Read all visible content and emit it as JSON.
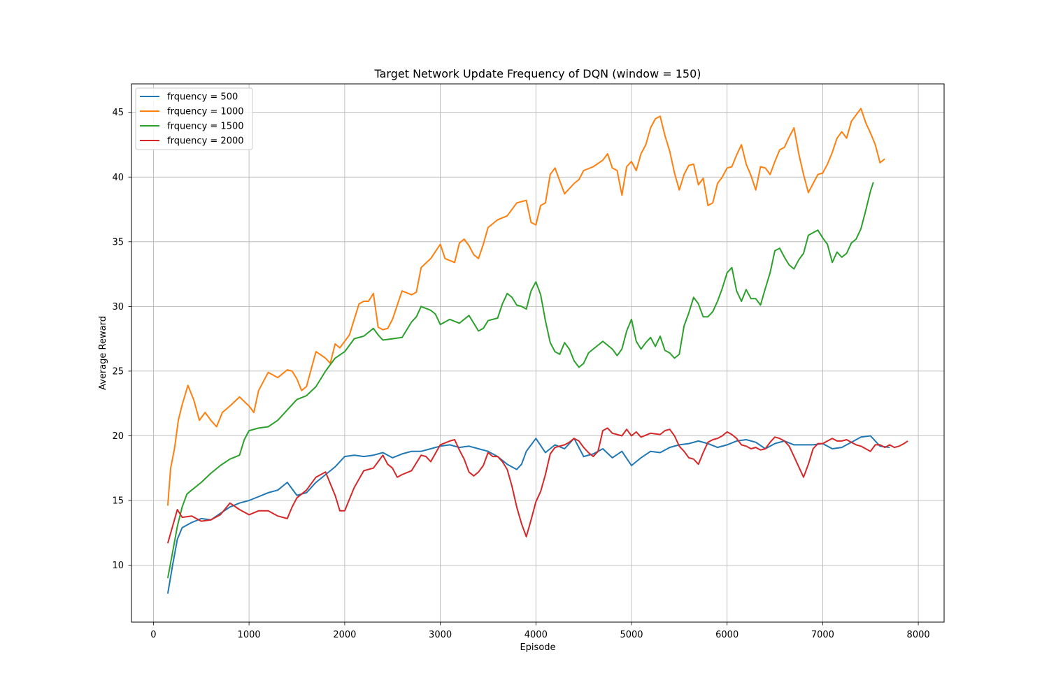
{
  "chart_data": {
    "type": "line",
    "title": "Target Network Update Frequency of DQN (window = 150)",
    "xlabel": "Episode",
    "ylabel": "Average Reward",
    "xlim": [
      -230,
      8270
    ],
    "ylim": [
      5.6,
      47.2
    ],
    "xticks": [
      0,
      1000,
      2000,
      3000,
      4000,
      5000,
      6000,
      7000,
      8000
    ],
    "yticks": [
      10,
      15,
      20,
      25,
      30,
      35,
      40,
      45
    ],
    "grid": true,
    "legend_position": "upper-left",
    "series": [
      {
        "name": "frquency = 500",
        "color": "#1f77b4",
        "x": [
          150,
          200,
          250,
          300,
          400,
          500,
          600,
          700,
          800,
          900,
          1000,
          1100,
          1200,
          1300,
          1400,
          1500,
          1600,
          1700,
          1800,
          1900,
          2000,
          2100,
          2200,
          2300,
          2400,
          2500,
          2600,
          2700,
          2800,
          2900,
          3000,
          3100,
          3200,
          3300,
          3400,
          3500,
          3600,
          3700,
          3800,
          3850,
          3900,
          4000,
          4100,
          4200,
          4300,
          4400,
          4500,
          4600,
          4700,
          4800,
          4900,
          5000,
          5100,
          5200,
          5300,
          5400,
          5500,
          5600,
          5700,
          5800,
          5900,
          6000,
          6100,
          6200,
          6300,
          6400,
          6500,
          6600,
          6700,
          6800,
          6900,
          7000,
          7100,
          7200,
          7300,
          7400,
          7500,
          7600,
          7700
        ],
        "y": [
          7.8,
          10.0,
          12.0,
          12.9,
          13.3,
          13.6,
          13.5,
          14.0,
          14.5,
          14.8,
          15.0,
          15.3,
          15.6,
          15.8,
          16.4,
          15.4,
          15.6,
          16.4,
          17.0,
          17.6,
          18.4,
          18.5,
          18.4,
          18.5,
          18.7,
          18.3,
          18.6,
          18.8,
          18.8,
          19.0,
          19.2,
          19.3,
          19.1,
          19.2,
          19.0,
          18.8,
          18.4,
          17.8,
          17.4,
          17.8,
          18.8,
          19.8,
          18.7,
          19.3,
          19.0,
          19.8,
          18.4,
          18.6,
          19.0,
          18.3,
          18.8,
          17.7,
          18.3,
          18.8,
          18.7,
          19.1,
          19.3,
          19.4,
          19.6,
          19.4,
          19.1,
          19.3,
          19.6,
          19.7,
          19.5,
          19.0,
          19.4,
          19.6,
          19.3,
          19.3,
          19.3,
          19.4,
          19.0,
          19.1,
          19.5,
          19.9,
          20.0,
          19.2,
          19.1
        ]
      },
      {
        "name": "frquency = 1000",
        "color": "#ff7f0e",
        "x": [
          150,
          180,
          220,
          260,
          300,
          360,
          420,
          480,
          540,
          600,
          660,
          720,
          800,
          900,
          1000,
          1050,
          1100,
          1200,
          1300,
          1400,
          1450,
          1500,
          1550,
          1600,
          1700,
          1800,
          1850,
          1900,
          1950,
          2000,
          2050,
          2100,
          2150,
          2200,
          2250,
          2300,
          2350,
          2400,
          2450,
          2500,
          2600,
          2700,
          2750,
          2800,
          2900,
          3000,
          3050,
          3150,
          3200,
          3250,
          3300,
          3350,
          3400,
          3450,
          3500,
          3600,
          3700,
          3800,
          3900,
          3950,
          4000,
          4050,
          4100,
          4150,
          4200,
          4300,
          4400,
          4450,
          4500,
          4600,
          4700,
          4750,
          4800,
          4850,
          4900,
          4950,
          5000,
          5050,
          5100,
          5150,
          5200,
          5250,
          5300,
          5350,
          5400,
          5450,
          5500,
          5550,
          5600,
          5650,
          5700,
          5750,
          5800,
          5850,
          5900,
          5950,
          6000,
          6050,
          6100,
          6150,
          6200,
          6250,
          6300,
          6350,
          6400,
          6450,
          6500,
          6550,
          6600,
          6650,
          6700,
          6750,
          6800,
          6850,
          6900,
          6950,
          7000,
          7050,
          7100,
          7150,
          7200,
          7250,
          7300,
          7350,
          7400,
          7450,
          7500,
          7550,
          7600,
          7650
        ],
        "y": [
          14.6,
          17.5,
          19.0,
          21.2,
          22.4,
          23.9,
          22.8,
          21.2,
          21.8,
          21.2,
          20.7,
          21.8,
          22.3,
          23.0,
          22.3,
          21.8,
          23.5,
          24.9,
          24.5,
          25.1,
          25.0,
          24.4,
          23.5,
          23.8,
          26.5,
          26.0,
          25.6,
          27.1,
          26.8,
          27.3,
          27.8,
          29.0,
          30.2,
          30.4,
          30.4,
          31.0,
          28.4,
          28.2,
          28.3,
          29.0,
          31.2,
          30.9,
          31.1,
          33.0,
          33.7,
          34.8,
          33.7,
          33.4,
          34.9,
          35.2,
          34.7,
          34.0,
          33.7,
          34.8,
          36.1,
          36.7,
          37.0,
          38.0,
          38.2,
          36.5,
          36.3,
          37.8,
          38.0,
          40.2,
          40.7,
          38.7,
          39.5,
          39.8,
          40.5,
          40.8,
          41.3,
          41.8,
          40.7,
          40.5,
          38.6,
          40.8,
          41.2,
          40.5,
          41.8,
          42.5,
          43.8,
          44.5,
          44.7,
          43.2,
          42.0,
          40.3,
          39.0,
          40.2,
          40.9,
          41.0,
          39.4,
          39.9,
          37.8,
          38.0,
          39.5,
          40.0,
          40.7,
          40.8,
          41.7,
          42.5,
          41.0,
          40.1,
          39.0,
          40.8,
          40.7,
          40.2,
          41.2,
          42.1,
          42.3,
          43.1,
          43.8,
          41.8,
          40.2,
          38.8,
          39.5,
          40.2,
          40.3,
          41.0,
          41.9,
          43.0,
          43.5,
          43.0,
          44.3,
          44.8,
          45.3,
          44.2,
          43.4,
          42.5,
          41.1,
          41.4
        ]
      },
      {
        "name": "frquency = 1500",
        "color": "#2ca02c",
        "x": [
          150,
          200,
          250,
          300,
          350,
          400,
          500,
          600,
          700,
          800,
          900,
          950,
          1000,
          1100,
          1200,
          1300,
          1400,
          1500,
          1600,
          1700,
          1800,
          1900,
          2000,
          2100,
          2200,
          2300,
          2350,
          2400,
          2500,
          2600,
          2700,
          2750,
          2800,
          2900,
          2950,
          3000,
          3100,
          3200,
          3300,
          3400,
          3450,
          3500,
          3600,
          3650,
          3700,
          3750,
          3800,
          3850,
          3900,
          3950,
          4000,
          4050,
          4100,
          4150,
          4200,
          4250,
          4300,
          4350,
          4400,
          4450,
          4500,
          4550,
          4600,
          4650,
          4700,
          4750,
          4800,
          4850,
          4900,
          4950,
          5000,
          5050,
          5100,
          5150,
          5200,
          5250,
          5300,
          5350,
          5400,
          5450,
          5500,
          5550,
          5600,
          5650,
          5700,
          5750,
          5800,
          5850,
          5900,
          5950,
          6000,
          6050,
          6100,
          6150,
          6200,
          6250,
          6300,
          6350,
          6400,
          6450,
          6500,
          6550,
          6600,
          6650,
          6700,
          6750,
          6800,
          6850,
          6900,
          6950,
          7000,
          7050,
          7100,
          7150,
          7200,
          7250,
          7300,
          7350,
          7400,
          7450,
          7500,
          7530
        ],
        "y": [
          9.0,
          11.0,
          13.0,
          14.5,
          15.5,
          15.8,
          16.4,
          17.1,
          17.7,
          18.2,
          18.5,
          19.7,
          20.4,
          20.6,
          20.7,
          21.2,
          22.0,
          22.8,
          23.1,
          23.8,
          25.0,
          26.0,
          26.5,
          27.5,
          27.7,
          28.3,
          27.8,
          27.4,
          27.5,
          27.6,
          28.8,
          29.2,
          30.0,
          29.7,
          29.4,
          28.6,
          29.0,
          28.7,
          29.3,
          28.1,
          28.3,
          28.9,
          29.1,
          30.2,
          31.0,
          30.7,
          30.1,
          30.0,
          29.8,
          31.2,
          31.9,
          30.9,
          28.9,
          27.2,
          26.5,
          26.3,
          27.2,
          26.7,
          25.8,
          25.3,
          25.6,
          26.4,
          26.7,
          27.0,
          27.3,
          27.0,
          26.7,
          26.2,
          26.7,
          28.1,
          29.0,
          27.3,
          26.7,
          27.2,
          27.6,
          26.9,
          27.7,
          26.6,
          26.4,
          26.0,
          26.3,
          28.5,
          29.5,
          30.7,
          30.2,
          29.2,
          29.2,
          29.6,
          30.4,
          31.4,
          32.6,
          33.0,
          31.2,
          30.4,
          31.3,
          30.6,
          30.6,
          30.1,
          31.4,
          32.6,
          34.3,
          34.5,
          33.8,
          33.2,
          32.9,
          33.6,
          34.1,
          35.5,
          35.7,
          35.9,
          35.3,
          34.8,
          33.4,
          34.2,
          33.8,
          34.1,
          34.9,
          35.2,
          36.0,
          37.4,
          38.9,
          39.6
        ]
      },
      {
        "name": "frquency = 2000",
        "color": "#d62728",
        "x": [
          150,
          200,
          250,
          300,
          400,
          500,
          600,
          700,
          800,
          900,
          1000,
          1100,
          1200,
          1300,
          1400,
          1450,
          1500,
          1600,
          1700,
          1800,
          1900,
          1950,
          2000,
          2100,
          2200,
          2300,
          2350,
          2400,
          2450,
          2500,
          2550,
          2600,
          2700,
          2800,
          2850,
          2900,
          3000,
          3100,
          3150,
          3200,
          3250,
          3300,
          3350,
          3400,
          3450,
          3500,
          3550,
          3600,
          3650,
          3700,
          3750,
          3800,
          3850,
          3900,
          3950,
          4000,
          4050,
          4100,
          4150,
          4200,
          4300,
          4350,
          4400,
          4450,
          4500,
          4550,
          4600,
          4650,
          4700,
          4750,
          4800,
          4850,
          4900,
          4950,
          5000,
          5050,
          5100,
          5200,
          5300,
          5350,
          5400,
          5450,
          5500,
          5550,
          5600,
          5650,
          5700,
          5750,
          5800,
          5850,
          5900,
          5950,
          6000,
          6050,
          6100,
          6150,
          6200,
          6250,
          6300,
          6350,
          6400,
          6450,
          6500,
          6550,
          6600,
          6650,
          6700,
          6750,
          6800,
          6850,
          6900,
          6950,
          7000,
          7050,
          7100,
          7150,
          7200,
          7250,
          7300,
          7350,
          7400,
          7450,
          7500,
          7550,
          7600,
          7650,
          7700,
          7750,
          7800,
          7850,
          7890
        ],
        "y": [
          11.7,
          13.0,
          14.3,
          13.7,
          13.8,
          13.4,
          13.5,
          13.9,
          14.8,
          14.3,
          13.9,
          14.2,
          14.2,
          13.8,
          13.6,
          14.5,
          15.2,
          15.8,
          16.8,
          17.2,
          15.4,
          14.2,
          14.2,
          16.0,
          17.3,
          17.5,
          18.0,
          18.5,
          17.8,
          17.5,
          16.8,
          17.0,
          17.3,
          18.5,
          18.4,
          18.0,
          19.3,
          19.6,
          19.7,
          18.9,
          18.2,
          17.2,
          16.9,
          17.2,
          17.7,
          18.7,
          18.4,
          18.4,
          18.0,
          17.4,
          16.1,
          14.5,
          13.2,
          12.2,
          13.5,
          14.9,
          15.7,
          17.0,
          18.6,
          19.1,
          19.3,
          19.5,
          19.8,
          19.6,
          19.1,
          18.7,
          18.4,
          18.8,
          20.4,
          20.6,
          20.2,
          20.1,
          20.0,
          20.5,
          20.0,
          20.3,
          19.9,
          20.2,
          20.1,
          20.4,
          20.5,
          20.0,
          19.2,
          18.8,
          18.3,
          18.2,
          17.8,
          18.7,
          19.5,
          19.7,
          19.8,
          20.0,
          20.3,
          20.1,
          19.8,
          19.3,
          19.2,
          19.0,
          19.1,
          18.9,
          19.0,
          19.5,
          19.9,
          19.8,
          19.6,
          19.2,
          18.4,
          17.6,
          16.8,
          17.8,
          19.0,
          19.4,
          19.4,
          19.6,
          19.8,
          19.6,
          19.6,
          19.7,
          19.5,
          19.3,
          19.2,
          19.0,
          18.8,
          19.3,
          19.3,
          19.1,
          19.3,
          19.1,
          19.2,
          19.4,
          19.6
        ]
      }
    ]
  }
}
